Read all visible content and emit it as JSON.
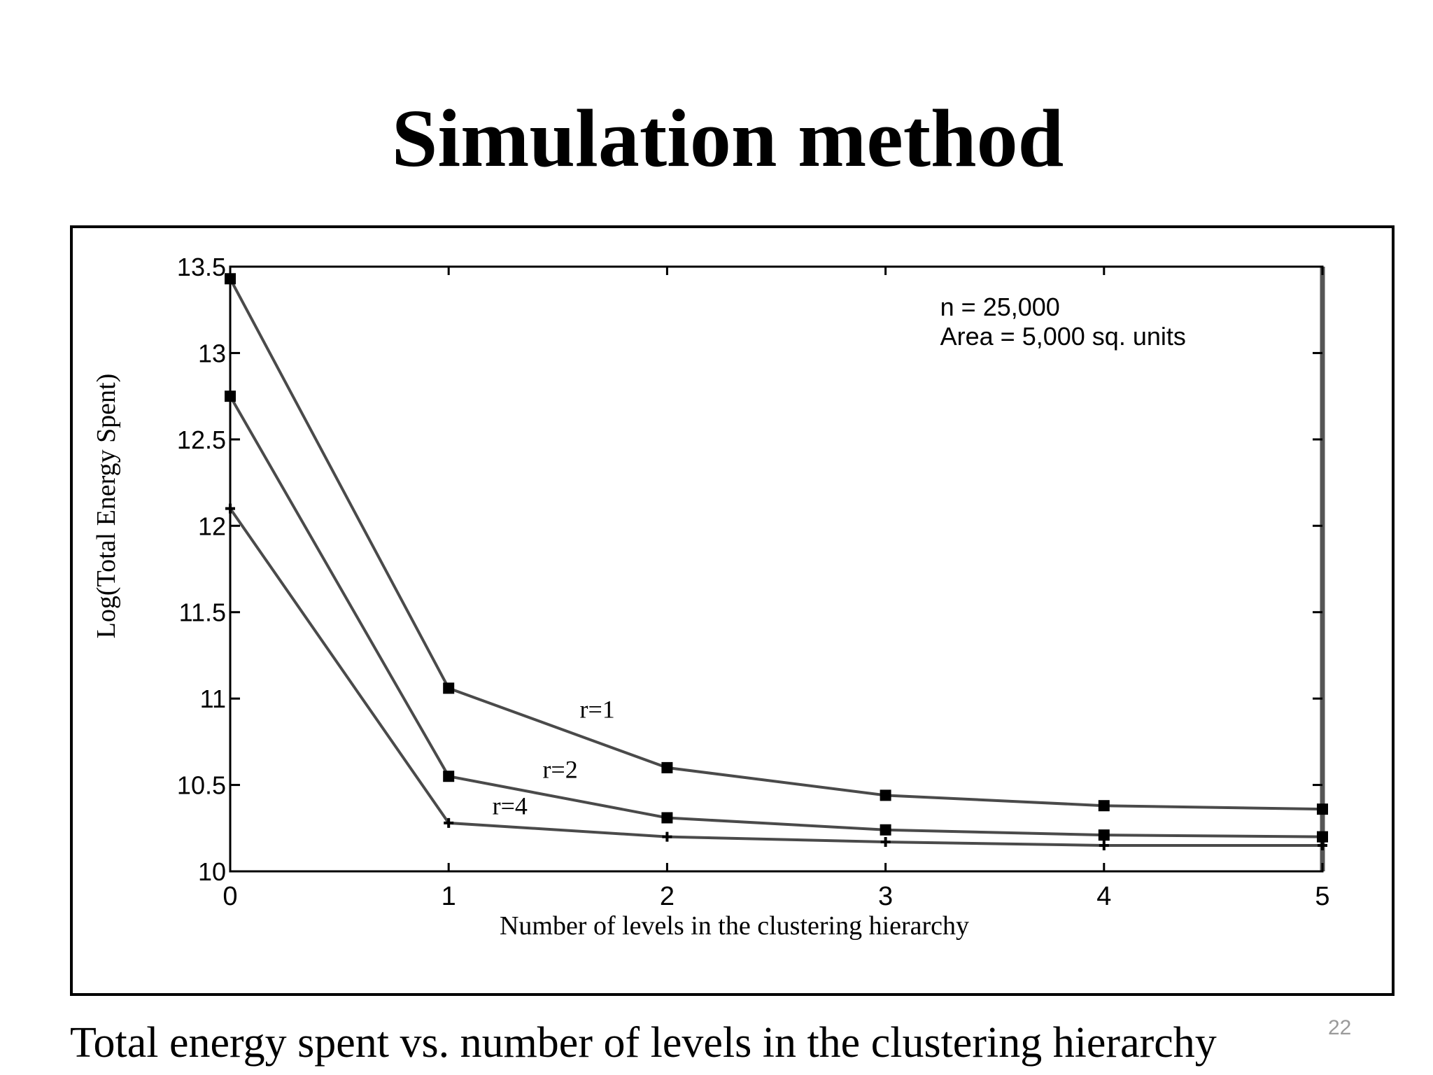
{
  "slide": {
    "title": "Simulation method",
    "caption": "Total energy spent vs. number of levels in the clustering hierarchy",
    "number": "22"
  },
  "chart_data": {
    "type": "line",
    "title": "",
    "xlabel": "Number of levels in the clustering hierarchy",
    "ylabel": "Log(Total Energy Spent)",
    "xlim": [
      0,
      5
    ],
    "ylim": [
      10,
      13.5
    ],
    "xticks": [
      0,
      1,
      2,
      3,
      4,
      5
    ],
    "xtick_labels": [
      "0",
      "1",
      "2",
      "3",
      "4",
      "5"
    ],
    "yticks": [
      10,
      10.5,
      11,
      11.5,
      12,
      12.5,
      13,
      13.5
    ],
    "ytick_labels": [
      "10",
      "10.5",
      "11",
      "11.5",
      "12",
      "12.5",
      "13",
      "13.5"
    ],
    "grid": false,
    "x": [
      0,
      1,
      2,
      3,
      4,
      5
    ],
    "series": [
      {
        "name": "r=1",
        "values": [
          13.43,
          11.06,
          10.6,
          10.44,
          10.38,
          10.36
        ],
        "marker": "square",
        "label_at": [
          1.6,
          10.89
        ]
      },
      {
        "name": "r=2",
        "values": [
          12.75,
          10.55,
          10.31,
          10.24,
          10.21,
          10.2
        ],
        "marker": "square",
        "label_at": [
          1.43,
          10.54
        ]
      },
      {
        "name": "r=4",
        "values": [
          12.1,
          10.28,
          10.2,
          10.17,
          10.15,
          10.15
        ],
        "marker": "plus",
        "label_at": [
          1.2,
          10.33
        ]
      }
    ],
    "annotation": {
      "lines": [
        "n = 25,000",
        "Area = 5,000 sq. units"
      ],
      "position": "top-right"
    },
    "colors": {
      "line": "#4a4a4a",
      "marker": "#000000",
      "axis": "#000000"
    }
  }
}
